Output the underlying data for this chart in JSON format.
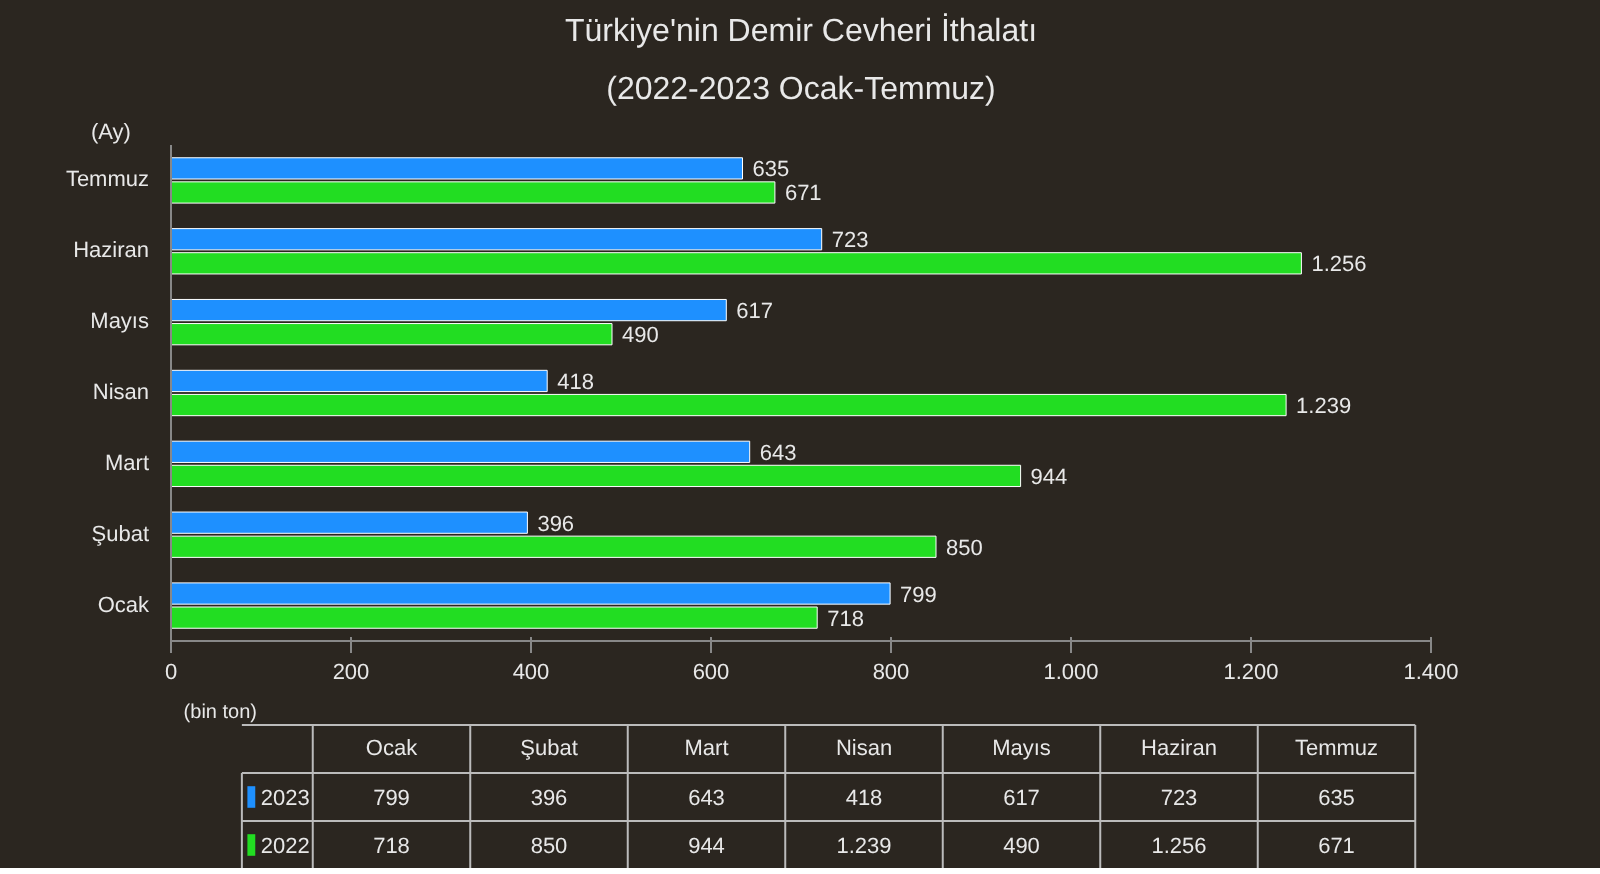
{
  "chart_data": {
    "type": "bar",
    "orientation": "horizontal",
    "title": "Türkiye'nin Demir Cevheri İthalatı",
    "subtitle": "(2022-2023 Ocak-Temmuz)",
    "xlabel": "(bin ton)",
    "ylabel": "(Ay)",
    "categories": [
      "Temmuz",
      "Haziran",
      "Mayıs",
      "Nisan",
      "Mart",
      "Şubat",
      "Ocak"
    ],
    "series": [
      {
        "name": "2023",
        "color": "#1e90ff",
        "values": [
          635,
          723,
          617,
          418,
          643,
          396,
          799
        ],
        "value_labels": [
          "635",
          "723",
          "617",
          "418",
          "643",
          "396",
          "799"
        ]
      },
      {
        "name": "2022",
        "color": "#22dd22",
        "values": [
          671,
          1256,
          490,
          1239,
          944,
          850,
          718
        ],
        "value_labels": [
          "671",
          "1.256",
          "490",
          "1.239",
          "944",
          "850",
          "718"
        ]
      }
    ],
    "xlim": [
      0,
      1400
    ],
    "xticks": [
      0,
      200,
      400,
      600,
      800,
      {
        "value": 1000,
        "label": "1.000"
      },
      {
        "value": 1200,
        "label": "1.200"
      },
      {
        "value": 1400,
        "label": "1.400"
      }
    ],
    "grid": false,
    "legend": "bottom"
  }
}
